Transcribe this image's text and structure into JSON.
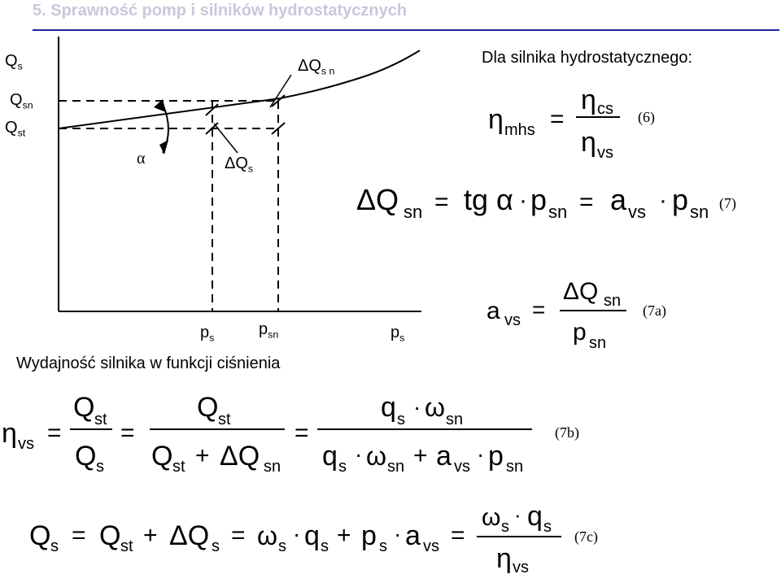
{
  "slide": {
    "title": "5. Sprawność pomp i silników hydrostatycznych"
  },
  "graph": {
    "y_labels": {
      "qs": "Q",
      "qs_sub": "s",
      "qsn": "Q",
      "qsn_sub": "sn",
      "qst": "Q",
      "qst_sub": "st"
    },
    "x_labels": {
      "ps": "p",
      "ps_sub": "s",
      "psn": "p",
      "psn_sub": "sn",
      "ps_end": "p",
      "ps_end_sub": "s"
    },
    "alpha": "α",
    "delta_qsn": "ΔQ",
    "delta_qsn_sub": "s n",
    "delta_qs": "ΔQ",
    "delta_qs_sub": "s",
    "caption": "Wydajność silnika w funkcji ciśnienia"
  },
  "right_panel": {
    "heading": "Dla silnika hydrostatycznego:",
    "eq6_tag": "(6)",
    "eq7_tag": "(7)",
    "eq7a_tag": "(7a)"
  },
  "bottom": {
    "eq7b_tag": "(7b)",
    "eq7c_tag": "(7c)"
  }
}
